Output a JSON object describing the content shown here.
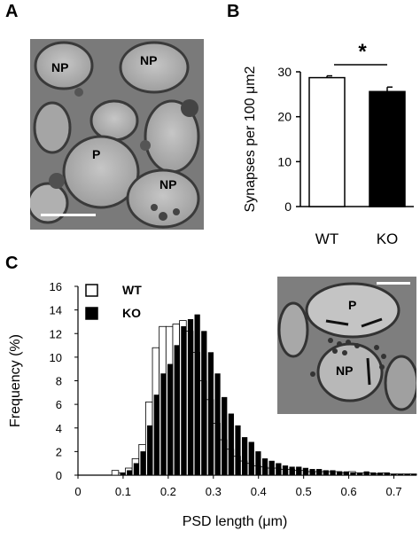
{
  "panels": {
    "a": {
      "letter": "A",
      "labels": [
        "NP",
        "NP",
        "P",
        "NP"
      ]
    },
    "b": {
      "letter": "B",
      "significance": "*"
    },
    "c": {
      "letter": "C",
      "inset_labels": [
        "P",
        "NP"
      ]
    }
  },
  "chart_data": [
    {
      "type": "bar",
      "ylabel": "Synapses per 100 μm2",
      "categories": [
        "WT",
        "KO"
      ],
      "values": [
        28.7,
        25.6
      ],
      "errors": [
        0.4,
        1.0
      ],
      "colors": [
        "#ffffff",
        "#000000"
      ],
      "ylim": [
        0,
        30
      ],
      "yticks": [
        0,
        10,
        20,
        30
      ]
    },
    {
      "type": "bar",
      "xlabel": "PSD length (μm)",
      "ylabel": "Frequency (%)",
      "xlim": [
        0,
        0.75
      ],
      "ylim": [
        0,
        16
      ],
      "xticks": [
        "0",
        "0.1",
        "0.2",
        "0.3",
        "0.4",
        "0.5",
        "0.6",
        "0.7"
      ],
      "yticks": [
        "0",
        "2",
        "4",
        "6",
        "8",
        "10",
        "12",
        "14",
        "16"
      ],
      "bin_width": 0.015,
      "bin_starts": [
        0.075,
        0.09,
        0.105,
        0.12,
        0.135,
        0.15,
        0.165,
        0.18,
        0.195,
        0.21,
        0.225,
        0.24,
        0.255,
        0.27,
        0.285,
        0.3,
        0.315,
        0.33,
        0.345,
        0.36,
        0.375,
        0.39,
        0.405,
        0.42,
        0.435,
        0.45,
        0.465,
        0.48,
        0.495,
        0.51,
        0.525,
        0.54,
        0.555,
        0.57,
        0.585,
        0.6,
        0.615,
        0.63,
        0.645,
        0.66,
        0.675,
        0.69,
        0.705,
        0.72,
        0.735
      ],
      "legend": "top-left",
      "series": [
        {
          "name": "WT",
          "color": "#ffffff",
          "values": [
            0.4,
            0.2,
            0.6,
            1.4,
            2.6,
            6.2,
            10.8,
            12.6,
            12.6,
            12.8,
            13.1,
            12.2,
            10.4,
            8.0,
            6.4,
            4.4,
            3.0,
            2.2,
            1.6,
            1.2,
            1.0,
            0.8,
            0.7,
            0.6,
            0.6,
            0.5,
            0.5,
            0.4,
            0.4,
            0.3,
            0.3,
            0.3,
            0.3,
            0.3,
            0.2,
            0.3,
            0.2,
            0.2,
            0.2,
            0.1,
            0.2,
            0.1,
            0.1,
            0.1,
            0.1
          ]
        },
        {
          "name": "KO",
          "color": "#000000",
          "values": [
            0.0,
            0.2,
            0.4,
            1.0,
            2.0,
            4.2,
            6.8,
            8.6,
            9.4,
            11.0,
            12.6,
            13.2,
            13.6,
            12.2,
            10.4,
            8.6,
            6.6,
            5.2,
            4.2,
            3.2,
            2.8,
            2.0,
            1.4,
            1.2,
            1.0,
            0.8,
            0.7,
            0.7,
            0.6,
            0.5,
            0.5,
            0.4,
            0.4,
            0.3,
            0.3,
            0.2,
            0.2,
            0.3,
            0.2,
            0.2,
            0.2,
            0.1,
            0.1,
            0.1,
            0.1
          ]
        }
      ]
    }
  ]
}
